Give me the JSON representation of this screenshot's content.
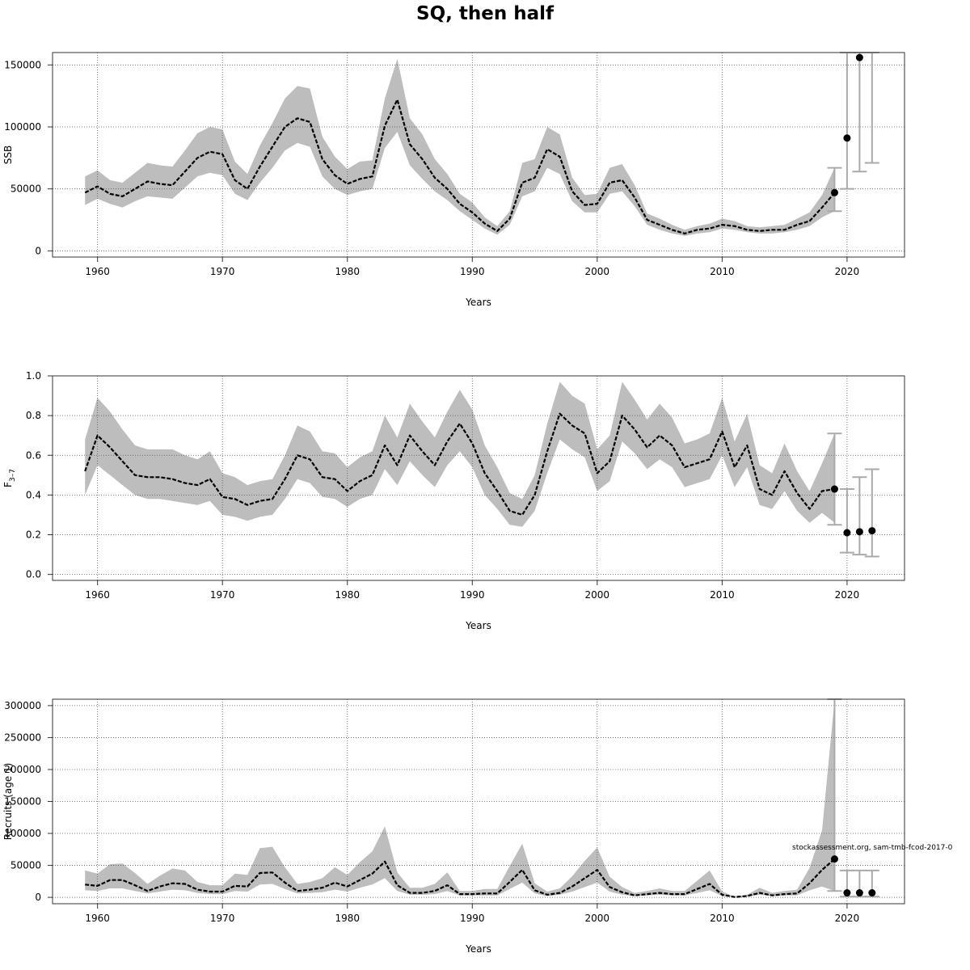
{
  "title": "SQ, then half",
  "credit": "stockassessment.org, sam-tmb-fcod-2017-0",
  "chart_data": [
    {
      "type": "line",
      "name": "ssb",
      "ylabel": "SSB",
      "xlabel": "Years",
      "xlim": [
        1956.4,
        2024.6
      ],
      "ylim": [
        -5000,
        160000
      ],
      "xticks": [
        1960,
        1970,
        1980,
        1990,
        2000,
        2010,
        2020
      ],
      "yticks": [
        0,
        50000,
        100000,
        150000
      ],
      "ytick_labels": [
        "0",
        "50000",
        "100000",
        "150000"
      ],
      "grid": true,
      "years": [
        1959,
        1960,
        1961,
        1962,
        1963,
        1964,
        1965,
        1966,
        1967,
        1968,
        1969,
        1970,
        1971,
        1972,
        1973,
        1974,
        1975,
        1976,
        1977,
        1978,
        1979,
        1980,
        1981,
        1982,
        1983,
        1984,
        1985,
        1986,
        1987,
        1988,
        1989,
        1990,
        1991,
        1992,
        1993,
        1994,
        1995,
        1996,
        1997,
        1998,
        1999,
        2000,
        2001,
        2002,
        2003,
        2004,
        2005,
        2006,
        2007,
        2008,
        2009,
        2010,
        2011,
        2012,
        2013,
        2014,
        2015,
        2016,
        2017,
        2018,
        2019
      ],
      "estimate": [
        47000,
        52000,
        46000,
        44000,
        50000,
        56000,
        54000,
        53000,
        64000,
        75000,
        80000,
        78000,
        57000,
        50000,
        68000,
        84000,
        100000,
        107000,
        104000,
        74000,
        61000,
        54000,
        58000,
        60000,
        101000,
        122000,
        86000,
        74000,
        59000,
        50000,
        38000,
        31000,
        22000,
        16000,
        26000,
        55000,
        59000,
        82000,
        76000,
        48000,
        37000,
        38000,
        55000,
        57000,
        43000,
        25000,
        21000,
        17000,
        14000,
        17000,
        18000,
        21000,
        20000,
        17000,
        16000,
        17000,
        17000,
        21000,
        24000,
        35000,
        47000
      ],
      "lower": [
        37000,
        42000,
        38000,
        35000,
        40000,
        44000,
        43000,
        42000,
        51000,
        60000,
        63000,
        61000,
        46000,
        41000,
        55000,
        67000,
        81000,
        87000,
        84000,
        60000,
        50000,
        45000,
        48000,
        50000,
        83000,
        96000,
        69000,
        58000,
        48000,
        41000,
        32000,
        25000,
        18000,
        13000,
        21000,
        44000,
        48000,
        67000,
        62000,
        40000,
        31000,
        31000,
        46000,
        48000,
        36000,
        21000,
        17000,
        14000,
        12000,
        14000,
        15000,
        18000,
        17000,
        15000,
        14000,
        14000,
        15000,
        17000,
        20000,
        27000,
        32000
      ],
      "upper": [
        60000,
        65000,
        57000,
        55000,
        63000,
        71000,
        69000,
        68000,
        81000,
        95000,
        100000,
        98000,
        72000,
        62000,
        85000,
        103000,
        123000,
        133000,
        131000,
        92000,
        76000,
        66000,
        72000,
        73000,
        123000,
        155000,
        107000,
        94000,
        74000,
        62000,
        46000,
        39000,
        27000,
        20000,
        32000,
        71000,
        74000,
        100000,
        94000,
        59000,
        45000,
        46000,
        67000,
        70000,
        53000,
        30000,
        26000,
        21000,
        17000,
        20000,
        22000,
        26000,
        24000,
        20000,
        19000,
        20000,
        21000,
        26000,
        31000,
        45000,
        67000
      ],
      "forecast_years": [
        2019,
        2020,
        2021,
        2022
      ],
      "forecast_median": [
        47000,
        91000,
        156000,
        null
      ],
      "forecast_low": [
        32000,
        50000,
        64000,
        71000
      ],
      "forecast_high": [
        67000,
        160000,
        160000,
        160000
      ]
    },
    {
      "type": "line",
      "name": "fbar",
      "ylabel": "F3-7",
      "ylabel_main": "F",
      "ylabel_sub": "3–7",
      "xlabel": "Years",
      "xlim": [
        1956.4,
        2024.6
      ],
      "ylim": [
        -0.03,
        1.0
      ],
      "xticks": [
        1960,
        1970,
        1980,
        1990,
        2000,
        2010,
        2020
      ],
      "yticks": [
        0.0,
        0.2,
        0.4,
        0.6,
        0.8,
        1.0
      ],
      "ytick_labels": [
        "0.0",
        "0.2",
        "0.4",
        "0.6",
        "0.8",
        "1.0"
      ],
      "grid": true,
      "years": [
        1959,
        1960,
        1961,
        1962,
        1963,
        1964,
        1965,
        1966,
        1967,
        1968,
        1969,
        1970,
        1971,
        1972,
        1973,
        1974,
        1975,
        1976,
        1977,
        1978,
        1979,
        1980,
        1981,
        1982,
        1983,
        1984,
        1985,
        1986,
        1987,
        1988,
        1989,
        1990,
        1991,
        1992,
        1993,
        1994,
        1995,
        1996,
        1997,
        1998,
        1999,
        2000,
        2001,
        2002,
        2003,
        2004,
        2005,
        2006,
        2007,
        2008,
        2009,
        2010,
        2011,
        2012,
        2013,
        2014,
        2015,
        2016,
        2017,
        2018,
        2019
      ],
      "estimate": [
        0.52,
        0.7,
        0.64,
        0.57,
        0.5,
        0.49,
        0.49,
        0.48,
        0.46,
        0.45,
        0.48,
        0.39,
        0.38,
        0.35,
        0.37,
        0.38,
        0.48,
        0.6,
        0.58,
        0.49,
        0.48,
        0.42,
        0.47,
        0.5,
        0.65,
        0.55,
        0.7,
        0.62,
        0.55,
        0.67,
        0.76,
        0.66,
        0.51,
        0.42,
        0.32,
        0.3,
        0.4,
        0.62,
        0.81,
        0.75,
        0.71,
        0.51,
        0.57,
        0.8,
        0.73,
        0.64,
        0.7,
        0.65,
        0.54,
        0.56,
        0.58,
        0.72,
        0.54,
        0.65,
        0.43,
        0.4,
        0.52,
        0.41,
        0.33,
        0.42,
        0.43
      ],
      "lower": [
        0.4,
        0.55,
        0.5,
        0.45,
        0.4,
        0.38,
        0.38,
        0.37,
        0.36,
        0.35,
        0.37,
        0.3,
        0.29,
        0.27,
        0.29,
        0.3,
        0.38,
        0.48,
        0.46,
        0.39,
        0.38,
        0.34,
        0.38,
        0.4,
        0.53,
        0.45,
        0.57,
        0.5,
        0.44,
        0.55,
        0.62,
        0.54,
        0.4,
        0.33,
        0.25,
        0.24,
        0.32,
        0.51,
        0.68,
        0.63,
        0.59,
        0.42,
        0.47,
        0.67,
        0.61,
        0.53,
        0.58,
        0.54,
        0.44,
        0.46,
        0.48,
        0.6,
        0.44,
        0.54,
        0.35,
        0.33,
        0.42,
        0.32,
        0.26,
        0.31,
        0.26
      ],
      "upper": [
        0.68,
        0.89,
        0.82,
        0.73,
        0.65,
        0.63,
        0.63,
        0.63,
        0.6,
        0.58,
        0.62,
        0.51,
        0.49,
        0.45,
        0.47,
        0.48,
        0.6,
        0.75,
        0.72,
        0.62,
        0.61,
        0.54,
        0.59,
        0.62,
        0.8,
        0.69,
        0.86,
        0.77,
        0.69,
        0.82,
        0.93,
        0.83,
        0.65,
        0.54,
        0.41,
        0.38,
        0.5,
        0.76,
        0.97,
        0.9,
        0.86,
        0.63,
        0.7,
        0.97,
        0.88,
        0.78,
        0.86,
        0.79,
        0.66,
        0.68,
        0.71,
        0.89,
        0.67,
        0.81,
        0.55,
        0.51,
        0.66,
        0.52,
        0.42,
        0.56,
        0.71
      ],
      "forecast_years": [
        2019,
        2020,
        2021,
        2022
      ],
      "forecast_median": [
        0.43,
        0.21,
        0.215,
        0.22
      ],
      "forecast_low": [
        0.25,
        0.11,
        0.1,
        0.09
      ],
      "forecast_high": [
        0.71,
        0.43,
        0.49,
        0.53
      ]
    },
    {
      "type": "line",
      "name": "recruitment",
      "ylabel": "Recruits (age 1)",
      "xlabel": "Years",
      "xlim": [
        1956.4,
        2024.6
      ],
      "ylim": [
        -10000,
        310000
      ],
      "xticks": [
        1960,
        1970,
        1980,
        1990,
        2000,
        2010,
        2020
      ],
      "yticks": [
        0,
        50000,
        100000,
        150000,
        200000,
        250000,
        300000
      ],
      "ytick_labels": [
        "0",
        "50000",
        "100000",
        "150000",
        "200000",
        "250000",
        "300000"
      ],
      "grid": true,
      "years": [
        1959,
        1960,
        1961,
        1962,
        1963,
        1964,
        1965,
        1966,
        1967,
        1968,
        1969,
        1970,
        1971,
        1972,
        1973,
        1974,
        1975,
        1976,
        1977,
        1978,
        1979,
        1980,
        1981,
        1982,
        1983,
        1984,
        1985,
        1986,
        1987,
        1988,
        1989,
        1990,
        1991,
        1992,
        1993,
        1994,
        1995,
        1996,
        1997,
        1998,
        1999,
        2000,
        2001,
        2002,
        2003,
        2004,
        2005,
        2006,
        2007,
        2008,
        2009,
        2010,
        2011,
        2012,
        2013,
        2014,
        2015,
        2016,
        2017,
        2018,
        2019
      ],
      "estimate": [
        20000,
        18000,
        27000,
        27000,
        19000,
        10000,
        17000,
        22000,
        21000,
        12000,
        9000,
        9000,
        18000,
        17000,
        38000,
        39000,
        23000,
        10000,
        12000,
        15000,
        23000,
        17000,
        27000,
        37000,
        56000,
        19000,
        7000,
        7000,
        10000,
        19000,
        5000,
        5000,
        6000,
        6000,
        24000,
        43000,
        11000,
        4000,
        7000,
        17000,
        30000,
        43000,
        16000,
        8000,
        3000,
        5000,
        7000,
        5000,
        5000,
        13000,
        21000,
        4000,
        500,
        2000,
        7000,
        3000,
        5000,
        6000,
        22000,
        43000,
        60000
      ],
      "lower": [
        11000,
        10000,
        14000,
        14000,
        10000,
        6000,
        9000,
        12000,
        11000,
        7000,
        5000,
        5000,
        10000,
        9000,
        20000,
        21000,
        13000,
        6000,
        7000,
        8000,
        12000,
        9000,
        15000,
        20000,
        30000,
        10000,
        4000,
        4000,
        5000,
        10000,
        3000,
        3000,
        3000,
        3000,
        13000,
        23000,
        6000,
        2000,
        4000,
        9000,
        16000,
        23000,
        9000,
        4000,
        2000,
        3000,
        4000,
        3000,
        3000,
        7000,
        11000,
        2000,
        200,
        1000,
        4000,
        2000,
        3000,
        3000,
        11000,
        17000,
        10000
      ],
      "upper": [
        42000,
        37000,
        52000,
        53000,
        38000,
        21000,
        34000,
        45000,
        42000,
        24000,
        19000,
        19000,
        37000,
        35000,
        77000,
        79000,
        47000,
        21000,
        24000,
        30000,
        47000,
        35000,
        55000,
        72000,
        111000,
        39000,
        15000,
        15000,
        21000,
        39000,
        10000,
        10000,
        13000,
        13000,
        49000,
        84000,
        22000,
        9000,
        14000,
        33000,
        57000,
        78000,
        32000,
        16000,
        7000,
        10000,
        14000,
        10000,
        10000,
        26000,
        42000,
        9000,
        1000,
        4000,
        15000,
        7000,
        10000,
        12000,
        46000,
        105000,
        310000
      ],
      "forecast_years": [
        2019,
        2020,
        2021,
        2022
      ],
      "forecast_median": [
        60000,
        7000,
        7000,
        7000
      ],
      "forecast_low": [
        10000,
        1000,
        1000,
        1000
      ],
      "forecast_high": [
        310000,
        42000,
        42000,
        42000
      ]
    }
  ]
}
